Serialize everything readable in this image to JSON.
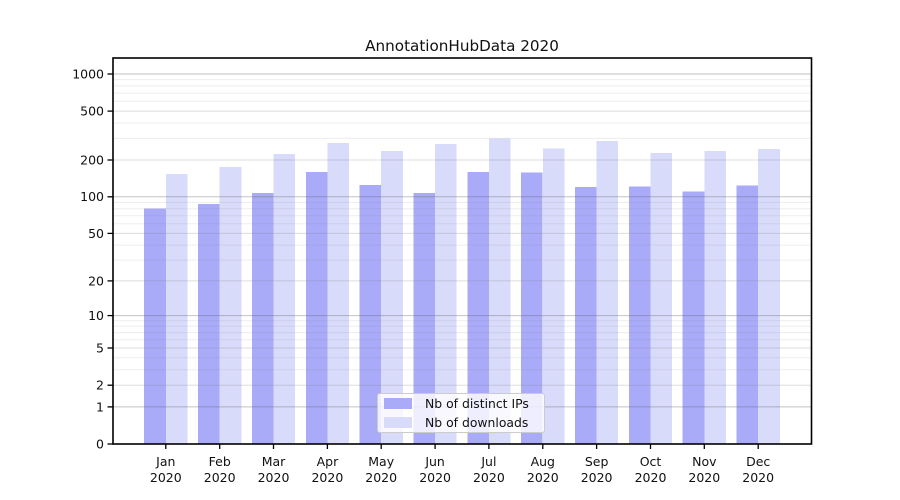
{
  "chart_data": {
    "type": "bar",
    "title": "AnnotationHubData 2020",
    "categories": [
      "Jan",
      "Feb",
      "Mar",
      "Apr",
      "May",
      "Jun",
      "Jul",
      "Aug",
      "Sep",
      "Oct",
      "Nov",
      "Dec"
    ],
    "category_year": "2020",
    "series": [
      {
        "key": "distinct-ips",
        "name": "Nb of distinct IPs",
        "color": "#a9abf9",
        "values": [
          80,
          87,
          107,
          159,
          125,
          108,
          160,
          158,
          120,
          122,
          111,
          124
        ]
      },
      {
        "key": "downloads",
        "name": "Nb of downloads",
        "color": "#d9dbfa",
        "values": [
          153,
          176,
          223,
          275,
          237,
          270,
          300,
          248,
          285,
          228,
          236,
          246
        ]
      }
    ],
    "yscale": "log10(1+x)",
    "yticks": [
      0,
      1,
      2,
      5,
      10,
      20,
      50,
      100,
      200,
      500,
      1000
    ],
    "ytick_labels": [
      "0",
      "1",
      "2",
      "5",
      "10",
      "20",
      "50",
      "100",
      "200",
      "500",
      "1000"
    ],
    "ylim": [
      0,
      1350
    ],
    "grid": "horizontal",
    "legend_position": "lower center",
    "colors": {
      "axis": "#000000",
      "grid_decade": "#c5c5c9",
      "grid_mid": "#dfdfe2",
      "grid_minor": "#ededf0"
    }
  }
}
